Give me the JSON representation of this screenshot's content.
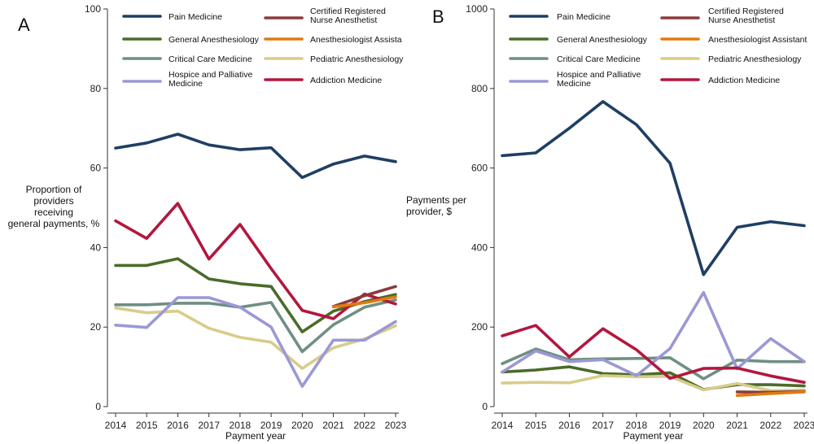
{
  "chart_data": [
    {
      "type": "line",
      "panel_label": "A",
      "xlabel": "Payment year",
      "ylabel_lines": [
        "Proportion of",
        "providers",
        "receiving",
        "general payments, %"
      ],
      "ylim": [
        0,
        100
      ],
      "yticks": [
        0,
        20,
        40,
        60,
        80,
        100
      ],
      "x": [
        2014,
        2015,
        2016,
        2017,
        2018,
        2019,
        2020,
        2021,
        2022,
        2023
      ],
      "legend": [
        {
          "name_lines": [
            "Pain Medicine"
          ],
          "color": "#1f3f63"
        },
        {
          "name_lines": [
            "Certified Registered",
            "Nurse Anesthetist"
          ],
          "color": "#8b3a3a"
        },
        {
          "name_lines": [
            "General Anesthesiology"
          ],
          "color": "#4a6b2a"
        },
        {
          "name_lines": [
            "Anesthesiologist Assista"
          ],
          "color": "#e07b10"
        },
        {
          "name_lines": [
            "Critical Care Medicine"
          ],
          "color": "#6f8f82"
        },
        {
          "name_lines": [
            "Pediatric Anesthesiology"
          ],
          "color": "#d8cc8a"
        },
        {
          "name_lines": [
            "Hospice and Palliative",
            "Medicine"
          ],
          "color": "#9b98d6"
        },
        {
          "name_lines": [
            "Addiction Medicine"
          ],
          "color": "#b3173e"
        }
      ],
      "series": [
        {
          "name": "Pain Medicine",
          "color": "#1f3f63",
          "x": [
            2014,
            2015,
            2016,
            2017,
            2018,
            2019,
            2020,
            2021,
            2022,
            2023
          ],
          "values": [
            65,
            66.3,
            68.5,
            65.8,
            64.6,
            65.1,
            57.6,
            61,
            63,
            61.6
          ]
        },
        {
          "name": "General Anesthesiology",
          "color": "#4a6b2a",
          "x": [
            2014,
            2015,
            2016,
            2017,
            2018,
            2019,
            2020,
            2021,
            2022,
            2023
          ],
          "values": [
            35.5,
            35.5,
            37.2,
            32.1,
            30.9,
            30.2,
            18.8,
            24,
            26.4,
            28.2
          ]
        },
        {
          "name": "Critical Care Medicine",
          "color": "#6f8f82",
          "x": [
            2014,
            2015,
            2016,
            2017,
            2018,
            2019,
            2020,
            2021,
            2022,
            2023
          ],
          "values": [
            25.6,
            25.6,
            26,
            26,
            25,
            26.2,
            13.8,
            20.6,
            25,
            26.8
          ]
        },
        {
          "name": "Pediatric Anesthesiology",
          "color": "#d8cc8a",
          "x": [
            2014,
            2015,
            2016,
            2017,
            2018,
            2019,
            2020,
            2021,
            2022,
            2023
          ],
          "values": [
            24.8,
            23.6,
            24,
            19.7,
            17.4,
            16.2,
            9.6,
            14.8,
            17,
            20.3
          ]
        },
        {
          "name": "Hospice and Palliative Medicine",
          "color": "#9b98d6",
          "x": [
            2014,
            2015,
            2016,
            2017,
            2018,
            2019,
            2020,
            2021,
            2022,
            2023
          ],
          "values": [
            20.5,
            19.9,
            27.4,
            27.4,
            25,
            20,
            5.1,
            16.7,
            16.7,
            21.4
          ]
        },
        {
          "name": "Addiction Medicine",
          "color": "#b3173e",
          "x": [
            2014,
            2015,
            2016,
            2017,
            2018,
            2019,
            2020,
            2021,
            2022,
            2023
          ],
          "values": [
            46.7,
            42.3,
            51.1,
            37.1,
            45.8,
            34.7,
            24.2,
            22.1,
            28.3,
            25.8
          ]
        },
        {
          "name": "Certified Registered Nurse Anesthetist",
          "color": "#8b3a3a",
          "x": [
            2021,
            2022,
            2023
          ],
          "values": [
            25.2,
            27.9,
            30.2
          ]
        },
        {
          "name": "Anesthesiologist Assistant",
          "color": "#e07b10",
          "x": [
            2021,
            2022,
            2023
          ],
          "values": [
            25.1,
            26.1,
            27.6
          ]
        }
      ]
    },
    {
      "type": "line",
      "panel_label": "B",
      "xlabel": "Payment year",
      "ylabel_lines": [
        "Payments per",
        "provider, $"
      ],
      "ylim": [
        0,
        1000
      ],
      "yticks": [
        0,
        200,
        400,
        600,
        800,
        1000
      ],
      "x": [
        2014,
        2015,
        2016,
        2017,
        2018,
        2019,
        2020,
        2021,
        2022,
        2023
      ],
      "legend": [
        {
          "name_lines": [
            "Pain Medicine"
          ],
          "color": "#1f3f63"
        },
        {
          "name_lines": [
            "Certified Registered",
            "Nurse Anesthetist"
          ],
          "color": "#8b3a3a"
        },
        {
          "name_lines": [
            "General Anesthesiology"
          ],
          "color": "#4a6b2a"
        },
        {
          "name_lines": [
            "Anesthesiologist Assistant"
          ],
          "color": "#e07b10"
        },
        {
          "name_lines": [
            "Critical Care Medicine"
          ],
          "color": "#6f8f82"
        },
        {
          "name_lines": [
            "Pediatric Anesthesiology"
          ],
          "color": "#d8cc8a"
        },
        {
          "name_lines": [
            "Hospice and Palliative",
            "Medicine"
          ],
          "color": "#9b98d6"
        },
        {
          "name_lines": [
            "Addiction Medicine"
          ],
          "color": "#b3173e"
        }
      ],
      "series": [
        {
          "name": "Pain Medicine",
          "color": "#1f3f63",
          "x": [
            2014,
            2015,
            2016,
            2017,
            2018,
            2019,
            2020,
            2021,
            2022,
            2023
          ],
          "values": [
            631,
            638,
            700,
            767,
            709,
            612,
            332,
            451,
            465,
            455
          ]
        },
        {
          "name": "General Anesthesiology",
          "color": "#4a6b2a",
          "x": [
            2014,
            2015,
            2016,
            2017,
            2018,
            2019,
            2020,
            2021,
            2022,
            2023
          ],
          "values": [
            87,
            92,
            100,
            83,
            80,
            85,
            43,
            55,
            55,
            52
          ]
        },
        {
          "name": "Critical Care Medicine",
          "color": "#6f8f82",
          "x": [
            2014,
            2015,
            2016,
            2017,
            2018,
            2019,
            2020,
            2021,
            2022,
            2023
          ],
          "values": [
            108,
            145,
            118,
            120,
            121,
            123,
            70,
            117,
            113,
            113
          ]
        },
        {
          "name": "Pediatric Anesthesiology",
          "color": "#d8cc8a",
          "x": [
            2014,
            2015,
            2016,
            2017,
            2018,
            2019,
            2020,
            2021,
            2022,
            2023
          ],
          "values": [
            59,
            61,
            60,
            78,
            75,
            76,
            42,
            58,
            40,
            42
          ]
        },
        {
          "name": "Hospice and Palliative Medicine",
          "color": "#9b98d6",
          "x": [
            2014,
            2015,
            2016,
            2017,
            2018,
            2019,
            2020,
            2021,
            2022,
            2023
          ],
          "values": [
            87,
            140,
            113,
            118,
            78,
            146,
            287,
            95,
            171,
            113
          ]
        },
        {
          "name": "Addiction Medicine",
          "color": "#b3173e",
          "x": [
            2014,
            2015,
            2016,
            2017,
            2018,
            2019,
            2020,
            2021,
            2022,
            2023
          ],
          "values": [
            178,
            204,
            125,
            196,
            143,
            71,
            96,
            97,
            77,
            61
          ]
        },
        {
          "name": "Certified Registered Nurse Anesthetist",
          "color": "#8b3a3a",
          "x": [
            2021,
            2022,
            2023
          ],
          "values": [
            37,
            36,
            38
          ]
        },
        {
          "name": "Anesthesiologist Assistant",
          "color": "#e07b10",
          "x": [
            2021,
            2022,
            2023
          ],
          "values": [
            28,
            33,
            37
          ]
        }
      ]
    }
  ]
}
